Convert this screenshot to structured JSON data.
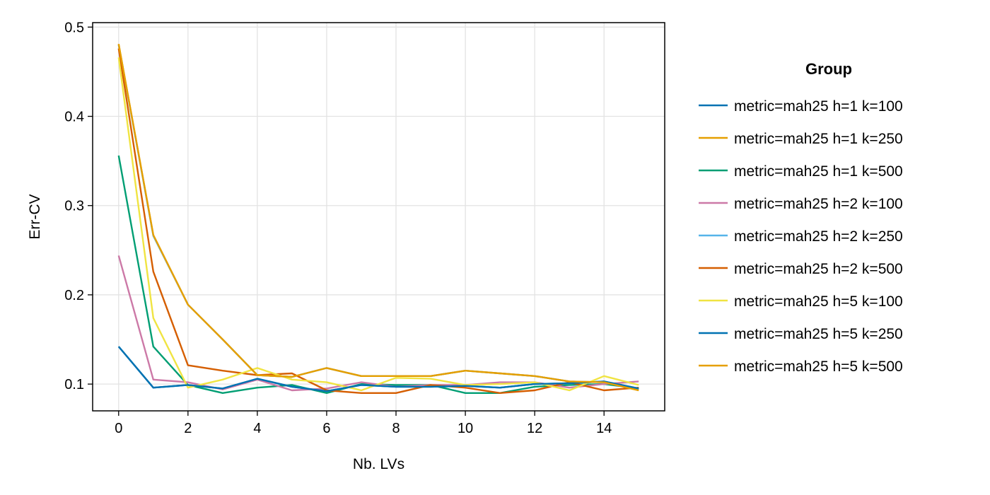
{
  "chart_data": {
    "type": "line",
    "xlabel": "Nb. LVs",
    "ylabel": "Err-CV",
    "xlim": [
      -0.75,
      15.75
    ],
    "ylim": [
      0.07,
      0.505
    ],
    "xticks": [
      0,
      2,
      4,
      6,
      8,
      10,
      12,
      14
    ],
    "yticks": [
      0.1,
      0.2,
      0.3,
      0.4,
      0.5
    ],
    "xtick_labels": [
      "0",
      "2",
      "4",
      "6",
      "8",
      "10",
      "12",
      "14"
    ],
    "ytick_labels": [
      "0.1",
      "0.2",
      "0.3",
      "0.4",
      "0.5"
    ],
    "grid": true,
    "legend": {
      "title": "Group",
      "placement": "right"
    },
    "x": [
      0,
      1,
      2,
      3,
      4,
      5,
      6,
      7,
      8,
      9,
      10,
      11,
      12,
      13,
      14,
      15
    ],
    "series": [
      {
        "name": "metric=mah25 h=1 k=100",
        "color": "#0072B2",
        "values": [
          0.142,
          0.096,
          0.099,
          0.095,
          0.106,
          0.097,
          0.092,
          0.099,
          0.097,
          0.097,
          0.098,
          0.096,
          0.1,
          0.101,
          0.103,
          0.095
        ]
      },
      {
        "name": "metric=mah25 h=1 k=250",
        "color": "#E69F00",
        "values": [
          0.481,
          0.267,
          0.189,
          0.15,
          0.11,
          0.108,
          0.118,
          0.109,
          0.109,
          0.109,
          0.115,
          0.112,
          0.109,
          0.103,
          0.102,
          0.093
        ]
      },
      {
        "name": "metric=mah25 h=1 k=500",
        "color": "#009E73",
        "values": [
          0.356,
          0.142,
          0.099,
          0.09,
          0.096,
          0.099,
          0.09,
          0.1,
          0.099,
          0.099,
          0.09,
          0.09,
          0.097,
          0.099,
          0.1,
          0.095
        ]
      },
      {
        "name": "metric=mah25 h=2 k=100",
        "color": "#CC79A7",
        "values": [
          0.244,
          0.105,
          0.102,
          0.094,
          0.105,
          0.093,
          0.095,
          0.102,
          0.097,
          0.099,
          0.099,
          0.102,
          0.102,
          0.096,
          0.1,
          0.103
        ]
      },
      {
        "name": "metric=mah25 h=2 k=250",
        "color": "#56B4E9",
        "values": [
          0.48,
          0.266,
          0.189,
          0.15,
          0.11,
          0.108,
          0.118,
          0.109,
          0.109,
          0.109,
          0.115,
          0.112,
          0.109,
          0.103,
          0.102,
          0.094
        ]
      },
      {
        "name": "metric=mah25 h=2 k=500",
        "color": "#D55E00",
        "values": [
          0.476,
          0.226,
          0.121,
          0.115,
          0.11,
          0.112,
          0.093,
          0.09,
          0.09,
          0.099,
          0.096,
          0.09,
          0.093,
          0.102,
          0.093,
          0.096
        ]
      },
      {
        "name": "metric=mah25 h=5 k=100",
        "color": "#F0E442",
        "values": [
          0.466,
          0.174,
          0.096,
          0.105,
          0.118,
          0.105,
          0.102,
          0.093,
          0.107,
          0.106,
          0.099,
          0.1,
          0.102,
          0.093,
          0.109,
          0.099
        ]
      },
      {
        "name": "metric=mah25 h=5 k=250",
        "color": "#0072B2",
        "values": [
          0.142,
          0.096,
          0.099,
          0.095,
          0.106,
          0.097,
          0.092,
          0.099,
          0.097,
          0.097,
          0.098,
          0.096,
          0.1,
          0.101,
          0.103,
          0.095
        ]
      },
      {
        "name": "metric=mah25 h=5 k=500",
        "color": "#E69F00",
        "values": [
          0.481,
          0.267,
          0.189,
          0.15,
          0.11,
          0.108,
          0.118,
          0.109,
          0.109,
          0.109,
          0.115,
          0.112,
          0.109,
          0.103,
          0.102,
          0.093
        ]
      }
    ]
  }
}
